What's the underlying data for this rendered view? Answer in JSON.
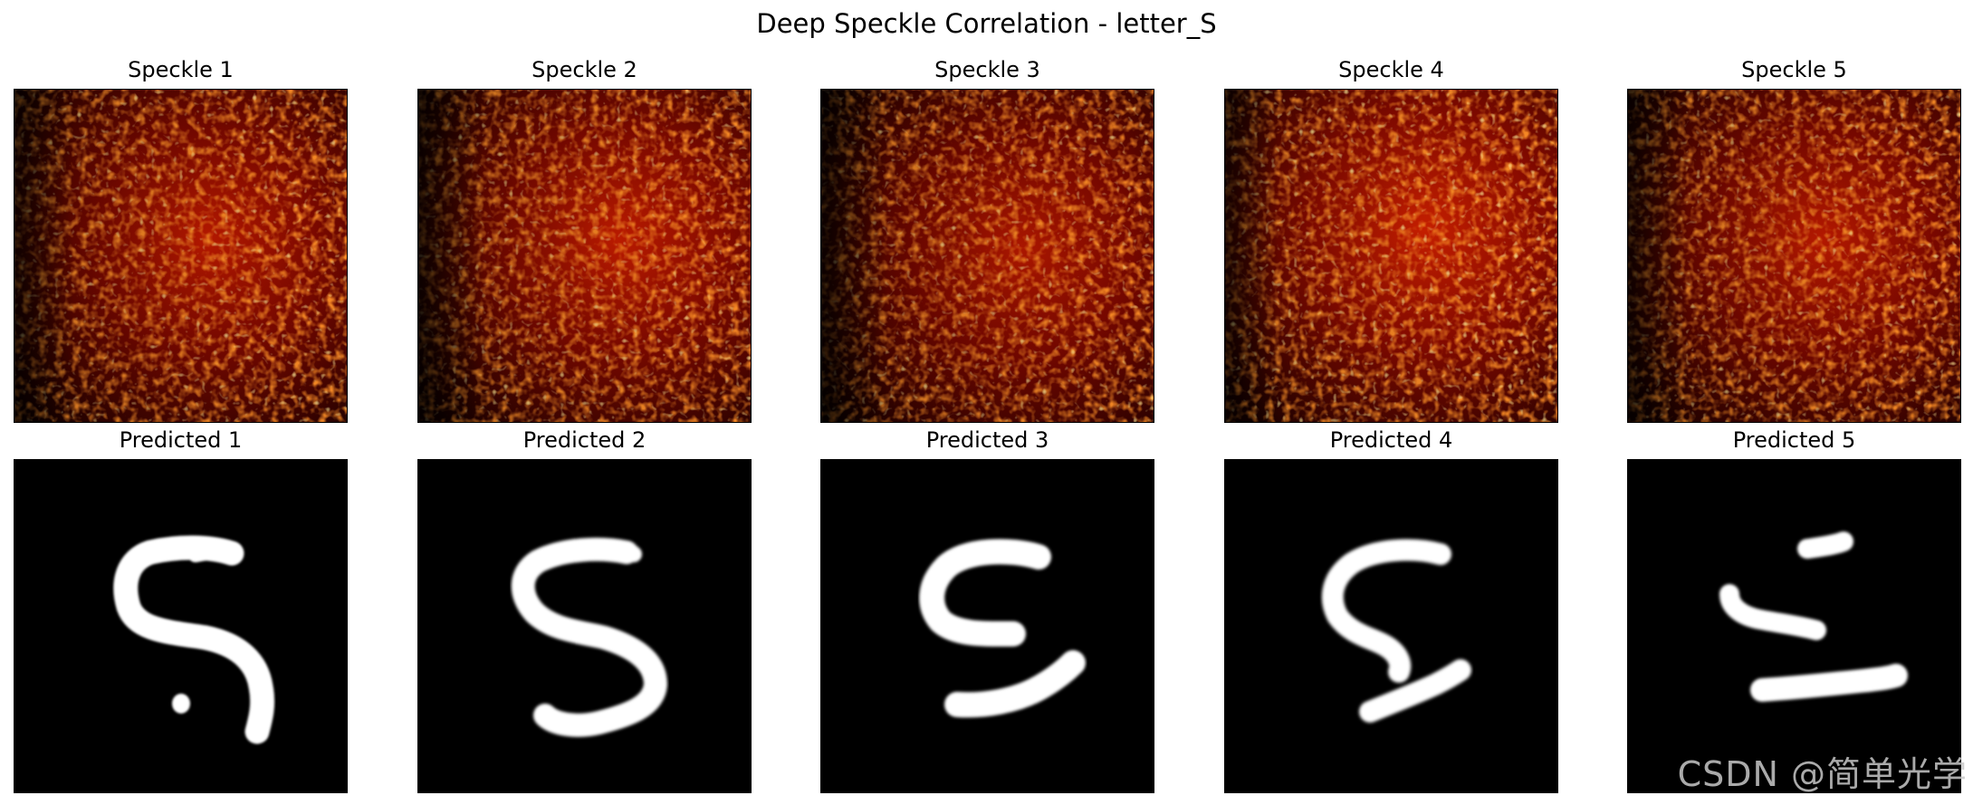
{
  "figure": {
    "title": "Deep Speckle Correlation - letter_S"
  },
  "colors": {
    "speckle_dark": "#1a0000",
    "speckle_mid": "#a00a00",
    "speckle_bright": "#ff4a08",
    "speckle_hot": "#ffd040",
    "prediction_background": "#000000",
    "prediction_foreground": "#ffffff",
    "watermark": "#c8c8c8"
  },
  "rows": {
    "speckle": {
      "panels": [
        {
          "title": "Speckle 1"
        },
        {
          "title": "Speckle 2"
        },
        {
          "title": "Speckle 3"
        },
        {
          "title": "Speckle 4"
        },
        {
          "title": "Speckle 5"
        }
      ]
    },
    "predicted": {
      "panels": [
        {
          "title": "Predicted 1"
        },
        {
          "title": "Predicted 2"
        },
        {
          "title": "Predicted 3"
        },
        {
          "title": "Predicted 4"
        },
        {
          "title": "Predicted 5"
        }
      ]
    }
  },
  "watermark": {
    "text": "CSDN @简单光学"
  }
}
